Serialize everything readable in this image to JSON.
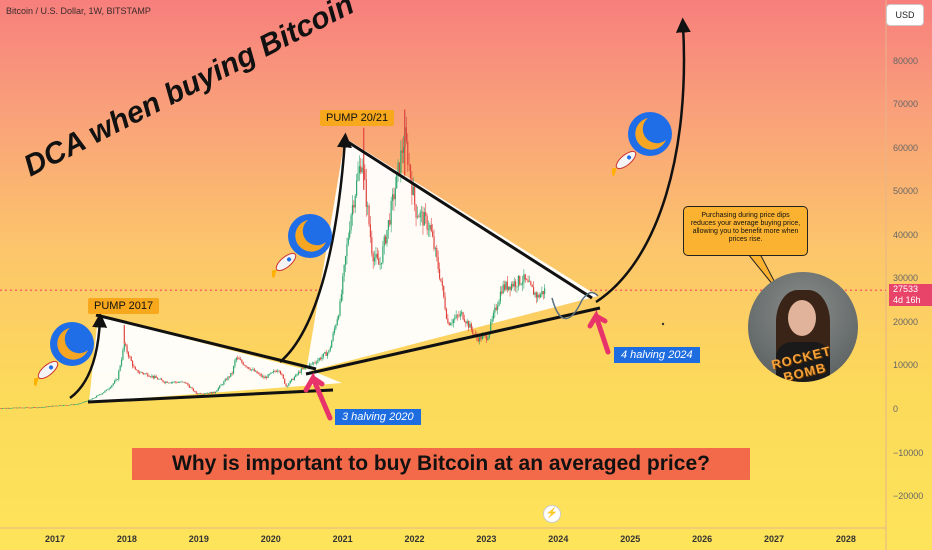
{
  "header": {
    "symbol_title": "Bitcoin / U.S. Dollar, 1W, BITSTAMP",
    "currency": "USD"
  },
  "annotations": {
    "headline": "DCA when buying Bitcoin",
    "pump_2017": "PUMP 2017",
    "pump_2021": "PUMP 20/21",
    "halving_2020": "3 halving  2020",
    "halving_2024": "4 halving 2024",
    "question": "Why is important to buy Bitcoin at an averaged price?",
    "speech": "Purchasing during price dips reduces your average buying price, allowing you to benefit more when prices rise.",
    "avatar_text": "ROCKET BOMB"
  },
  "price_tag": {
    "price": "27533",
    "countdown": "4d 16h"
  },
  "colors": {
    "candle_up": "#2ea66d",
    "candle_down": "#e0443f",
    "triangle_fill": "#ffffff",
    "halving_arrow": "#e8336a",
    "pump_label": "#f8a81c",
    "halving_label": "#1e6de0",
    "banner": "#f26a4a"
  },
  "icons": [
    "rocket-icon",
    "moon-icon",
    "tradingview-logo-icon"
  ],
  "chart_data": {
    "type": "candlestick",
    "title": "Bitcoin / U.S. Dollar, 1W, BITSTAMP",
    "ylim": [
      -25000,
      90000
    ],
    "y_ticks": [
      80000,
      70000,
      60000,
      50000,
      40000,
      30000,
      20000,
      10000,
      0,
      -10000,
      -20000
    ],
    "y_tick_labels": [
      "80000",
      "70000",
      "60000",
      "50000",
      "40000",
      "30000",
      "20000",
      "10000",
      "0",
      "−10000",
      "−20000"
    ],
    "x_ticks": [
      2017,
      2018,
      2019,
      2020,
      2021,
      2022,
      2023,
      2024,
      2025,
      2026,
      2027,
      2028
    ],
    "x_tick_labels": [
      "2017",
      "2018",
      "2019",
      "2020",
      "2021",
      "2022",
      "2023",
      "2024",
      "2025",
      "2026",
      "2027",
      "2028"
    ],
    "xlim": [
      2016.2,
      2028.6
    ],
    "last_price": 27533,
    "dotted_price_line": 27533,
    "series": [
      {
        "price_path": [
          [
            2016.2,
            400
          ],
          [
            2016.8,
            600
          ],
          [
            2017.0,
            1000
          ],
          [
            2017.3,
            1300
          ],
          [
            2017.5,
            2500
          ],
          [
            2017.7,
            4500
          ],
          [
            2017.85,
            7000
          ],
          [
            2017.95,
            15000
          ],
          [
            2018.0,
            13000
          ],
          [
            2018.1,
            9000
          ],
          [
            2018.3,
            8000
          ],
          [
            2018.5,
            6500
          ],
          [
            2018.8,
            6300
          ],
          [
            2018.95,
            3800
          ],
          [
            2019.2,
            4000
          ],
          [
            2019.45,
            8500
          ],
          [
            2019.5,
            12000
          ],
          [
            2019.7,
            9500
          ],
          [
            2019.9,
            7300
          ],
          [
            2020.1,
            9500
          ],
          [
            2020.2,
            5500
          ],
          [
            2020.4,
            9000
          ],
          [
            2020.6,
            11000
          ],
          [
            2020.8,
            13500
          ],
          [
            2020.95,
            24000
          ],
          [
            2021.1,
            45000
          ],
          [
            2021.25,
            58000
          ],
          [
            2021.4,
            36000
          ],
          [
            2021.5,
            33000
          ],
          [
            2021.65,
            45000
          ],
          [
            2021.85,
            63000
          ],
          [
            2022.0,
            46000
          ],
          [
            2022.2,
            42000
          ],
          [
            2022.35,
            30000
          ],
          [
            2022.45,
            20000
          ],
          [
            2022.65,
            22000
          ],
          [
            2022.85,
            16500
          ],
          [
            2023.0,
            16800
          ],
          [
            2023.2,
            28000
          ],
          [
            2023.5,
            30000
          ],
          [
            2023.7,
            26000
          ],
          [
            2023.8,
            27533
          ]
        ],
        "wick_highs": [
          [
            2017.95,
            19500
          ],
          [
            2021.28,
            64800
          ],
          [
            2021.85,
            69000
          ]
        ]
      }
    ]
  }
}
